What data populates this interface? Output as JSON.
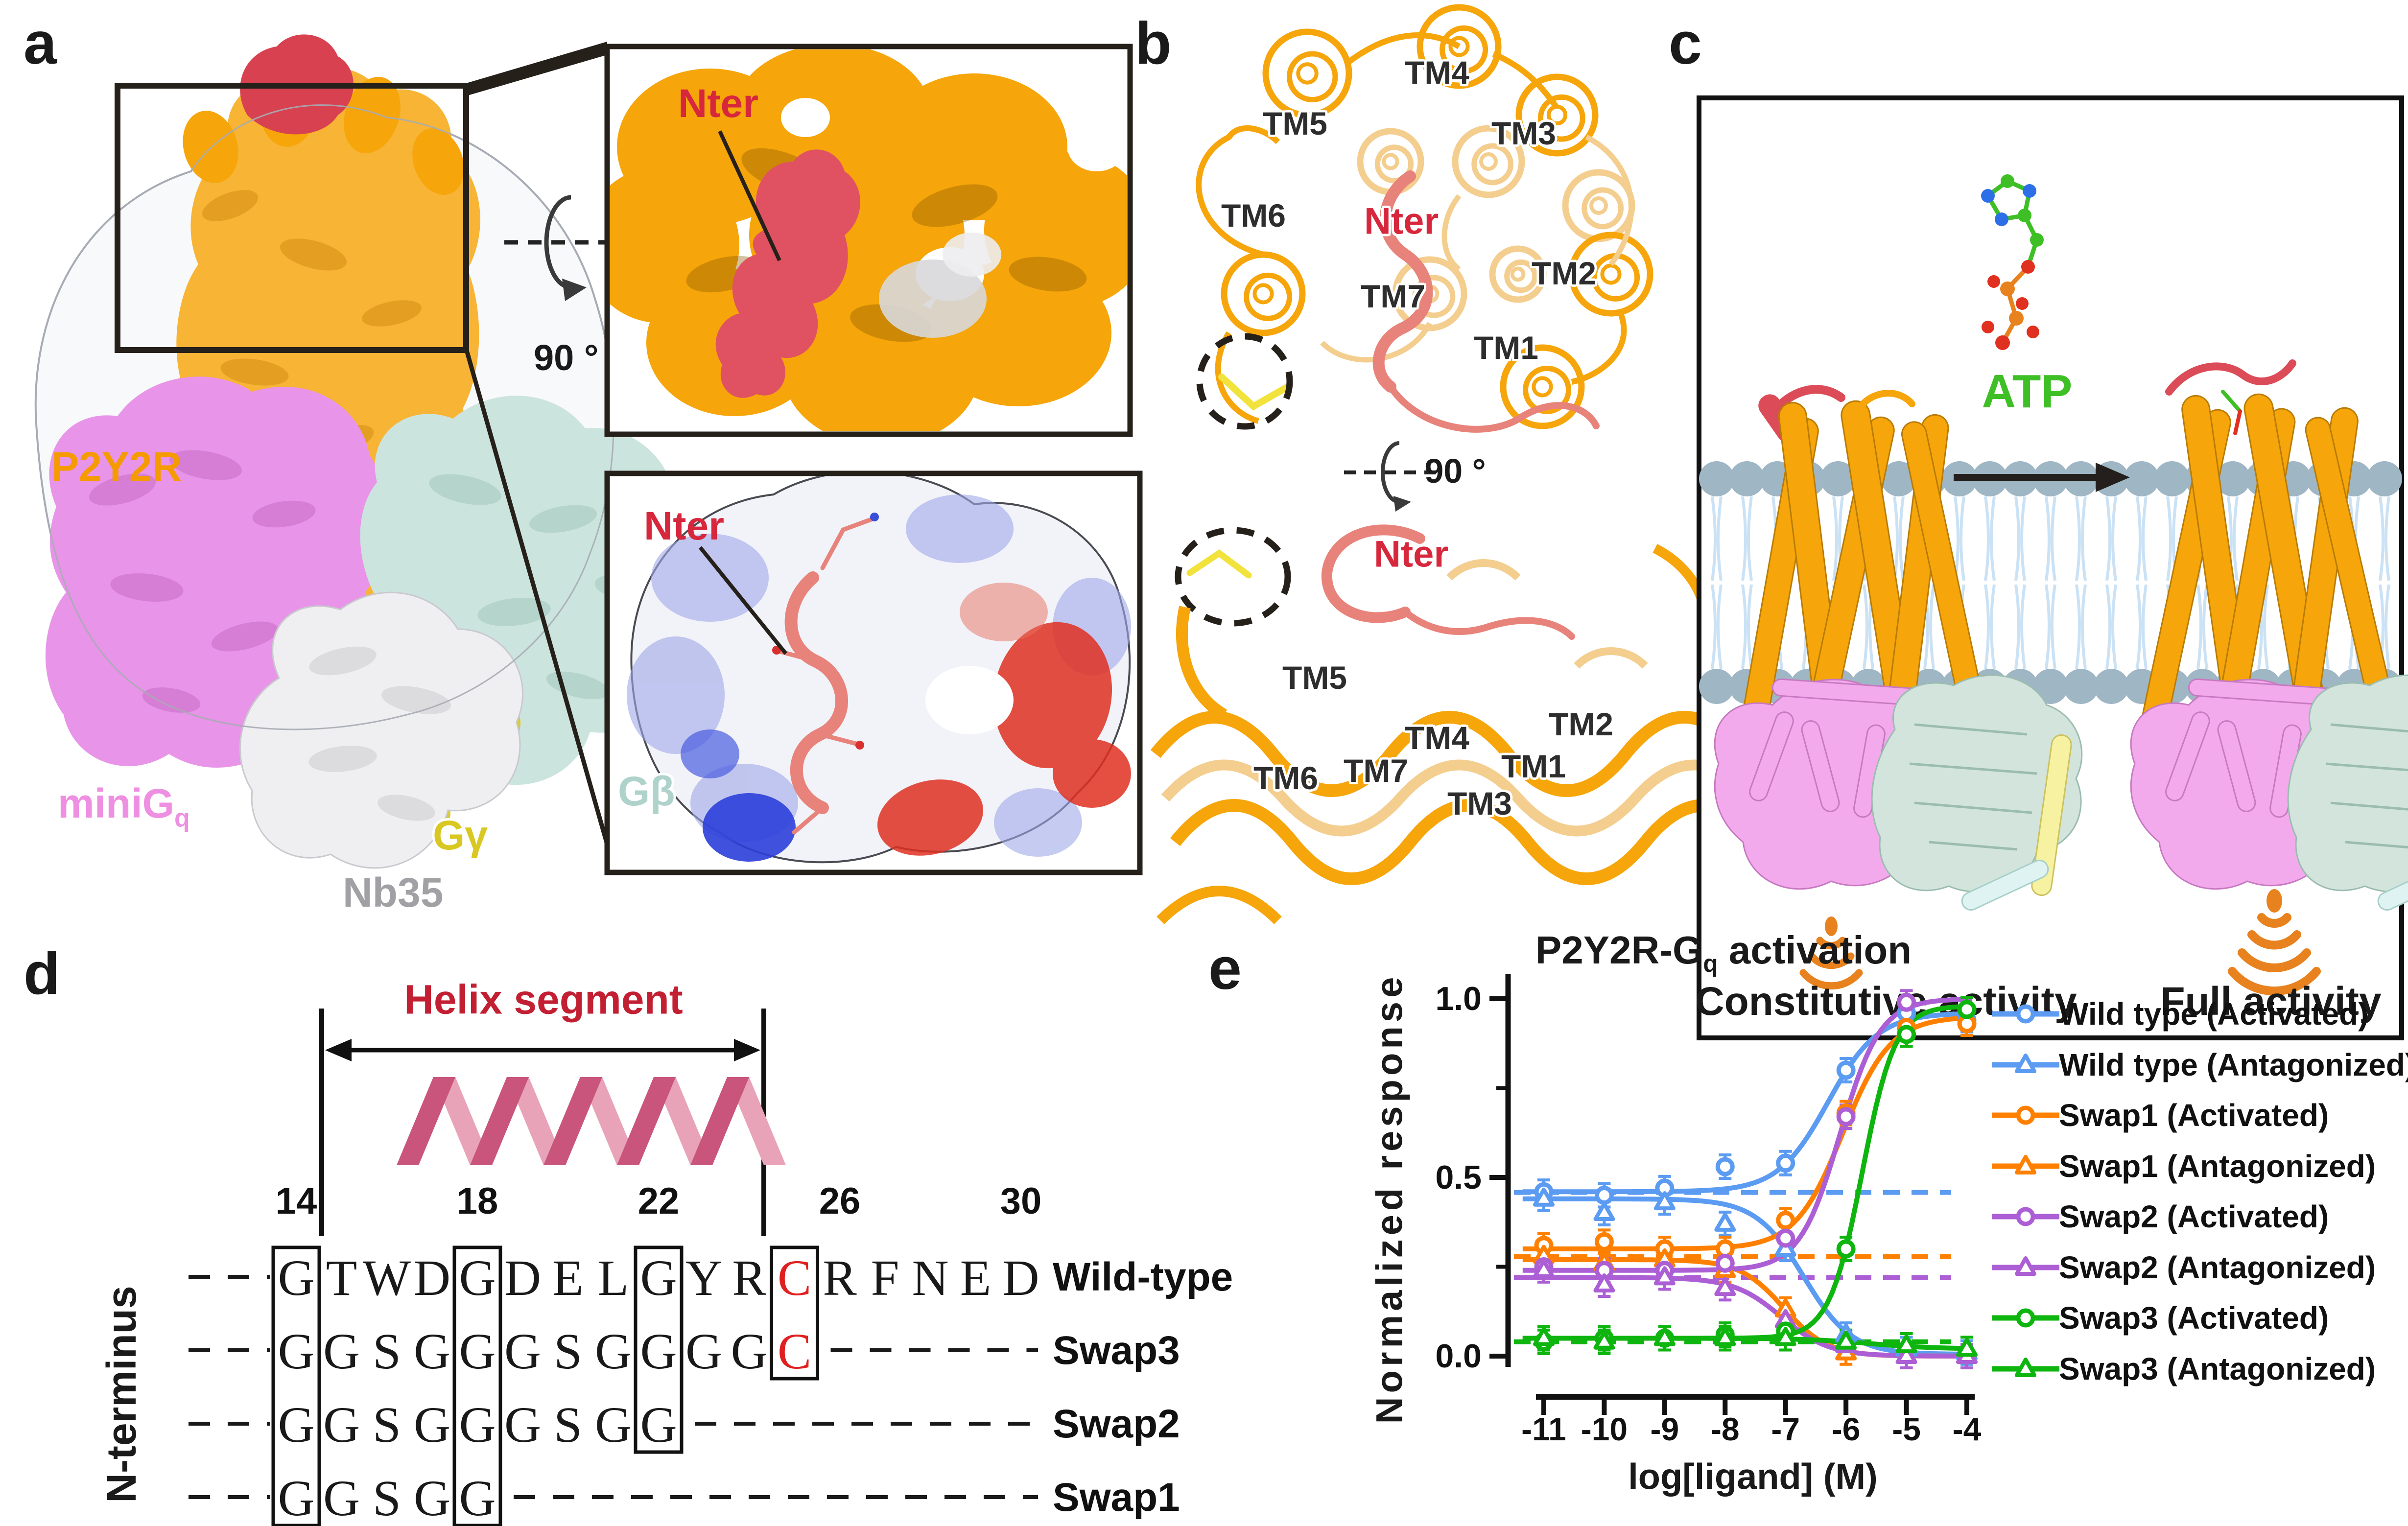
{
  "panels": {
    "a": {
      "label": "a",
      "receptor": "P2Y2R",
      "minig_main": "miniG",
      "minig_sub": "q",
      "ggamma": "Gγ",
      "gbeta": "Gβ",
      "nb35": "Nb35",
      "rotation": "90 °",
      "nter_top_inset": "Nter",
      "nter_bottom_inset": "Nter",
      "colors": {
        "receptor": "#F6A50A",
        "nter_density": "#D8414F",
        "minig": "#E894E8",
        "gbeta": "#CCE4DE",
        "ggamma": "#D9CB3A",
        "nb35": "#EFEFF1",
        "label_red": "#D6273C"
      }
    },
    "b": {
      "label": "b",
      "rotation": "90 °",
      "nter_top": "Nter",
      "nter_bottom": "Nter",
      "top": {
        "tm1": "TM1",
        "tm2": "TM2",
        "tm3": "TM3",
        "tm4": "TM4",
        "tm5": "TM5",
        "tm6": "TM6",
        "tm7": "TM7"
      },
      "bottom": {
        "tm1": "TM1",
        "tm2": "TM2",
        "tm3": "TM3",
        "tm4": "TM4",
        "tm5": "TM5",
        "tm6": "TM6",
        "tm7": "TM7"
      }
    },
    "c": {
      "label": "c",
      "atp": "ATP",
      "left_caption": "Constitutive activity",
      "right_caption": "Full activity",
      "atp_color": "#3FBF26",
      "signal_color": "#E8821E"
    },
    "d": {
      "label": "d",
      "helix_caption": "Helix segment",
      "axis_caption": "N-terminus",
      "position_labels": [
        "14",
        "18",
        "22",
        "26",
        "30"
      ],
      "position_columns": [
        0,
        4,
        8,
        12,
        16
      ],
      "rows": [
        {
          "name": "Wild-type",
          "seq": [
            "G",
            "T",
            "W",
            "D",
            "G",
            "D",
            "E",
            "L",
            "G",
            "Y",
            "R",
            "C",
            "R",
            "F",
            "N",
            "E",
            "D"
          ],
          "trailing_dash": false
        },
        {
          "name": "Swap3",
          "seq": [
            "G",
            "G",
            "S",
            "G",
            "G",
            "G",
            "S",
            "G",
            "G",
            "G",
            "G",
            "C"
          ],
          "trailing_dash": true
        },
        {
          "name": "Swap2",
          "seq": [
            "G",
            "G",
            "S",
            "G",
            "G",
            "G",
            "S",
            "G",
            "G"
          ],
          "trailing_dash": true
        },
        {
          "name": "Swap1",
          "seq": [
            "G",
            "G",
            "S",
            "G",
            "G"
          ],
          "trailing_dash": true
        }
      ],
      "boxes": [
        {
          "col": 0,
          "rows": 4
        },
        {
          "col": 4,
          "rows": 4
        },
        {
          "col": 8,
          "rows": 3
        },
        {
          "col": 11,
          "rows": 2
        }
      ],
      "red_letter": "C",
      "helix_color": "#C31F33"
    },
    "e": {
      "label": "e"
    }
  },
  "chart_data": {
    "type": "line",
    "title_main": "P2Y2R-G",
    "title_sub": "q",
    "title_rest": " activation",
    "xlabel": "log[ligand] (M)",
    "ylabel": "Normalized response",
    "x": [
      -11,
      -10,
      -9,
      -8,
      -7,
      -6,
      -5,
      -4
    ],
    "xtick_labels": [
      "-11",
      "-10",
      "-9",
      "-8",
      "-7",
      "-6",
      "-5",
      "-4"
    ],
    "ytick_labels": [
      "0.0",
      "0.5",
      "1.0"
    ],
    "yticks": [
      0.0,
      0.5,
      1.0
    ],
    "yminor": [
      0.25,
      0.75
    ],
    "ylim": [
      0,
      1.0
    ],
    "error": 0.022,
    "series": [
      {
        "name": "Wild type (Activated)",
        "color": "#5B9BF2",
        "marker": "circle",
        "values": [
          0.46,
          0.45,
          0.47,
          0.53,
          0.54,
          0.8,
          0.96,
          0.94
        ],
        "fit": {
          "bottom": 0.46,
          "top": 0.96,
          "logec50": -6.3,
          "hill": 1.05
        }
      },
      {
        "name": "Wild type (Antagonized)",
        "color": "#5B9BF2",
        "marker": "triangle",
        "values": [
          0.44,
          0.4,
          0.43,
          0.37,
          0.3,
          0.06,
          0.02,
          0.01
        ],
        "fit": {
          "bottom": 0.005,
          "top": 0.44,
          "logec50": -6.7,
          "hill": -1.1
        }
      },
      {
        "name": "Swap1 (Activated)",
        "color": "#FF8000",
        "marker": "circle",
        "values": [
          0.31,
          0.32,
          0.3,
          0.3,
          0.38,
          0.68,
          0.92,
          0.93
        ],
        "fit": {
          "bottom": 0.3,
          "top": 0.95,
          "logec50": -6.05,
          "hill": 1.1
        }
      },
      {
        "name": "Swap1 (Antagonized)",
        "color": "#FF8000",
        "marker": "triangle",
        "values": [
          0.28,
          0.26,
          0.27,
          0.24,
          0.13,
          0.01,
          0.0,
          0.0
        ],
        "fit": {
          "bottom": 0.0,
          "top": 0.27,
          "logec50": -7.03,
          "hill": -1.2
        }
      },
      {
        "name": "Swap2 (Activated)",
        "color": "#AC5FD5",
        "marker": "circle",
        "values": [
          0.25,
          0.24,
          0.24,
          0.26,
          0.33,
          0.67,
          0.99,
          0.97
        ],
        "fit": {
          "bottom": 0.24,
          "top": 1.0,
          "logec50": -6.1,
          "hill": 1.3
        }
      },
      {
        "name": "Swap2 (Antagonized)",
        "color": "#AC5FD5",
        "marker": "triangle",
        "values": [
          0.24,
          0.2,
          0.22,
          0.19,
          0.1,
          0.03,
          0.0,
          0.0
        ],
        "fit": {
          "bottom": 0.0,
          "top": 0.22,
          "logec50": -7.07,
          "hill": -1.1
        }
      },
      {
        "name": "Swap3 (Activated)",
        "color": "#0EB50E",
        "marker": "circle",
        "values": [
          0.04,
          0.05,
          0.05,
          0.06,
          0.07,
          0.3,
          0.9,
          0.97
        ],
        "fit": {
          "bottom": 0.05,
          "top": 0.98,
          "logec50": -5.73,
          "hill": 1.6
        }
      },
      {
        "name": "Swap3 (Antagonized)",
        "color": "#0EB50E",
        "marker": "triangle",
        "values": [
          0.05,
          0.04,
          0.05,
          0.05,
          0.05,
          0.04,
          0.03,
          0.02
        ],
        "fit": {
          "bottom": 0.02,
          "top": 0.05,
          "logec50": -5.6,
          "hill": -0.8
        }
      }
    ],
    "dashed_baselines": [
      {
        "color": "#5B9BF2",
        "y": 0.458
      },
      {
        "color": "#FF8000",
        "y": 0.278
      },
      {
        "color": "#AC5FD5",
        "y": 0.22
      },
      {
        "color": "#0EB50E",
        "y": 0.04
      }
    ],
    "legend_position": "right"
  }
}
